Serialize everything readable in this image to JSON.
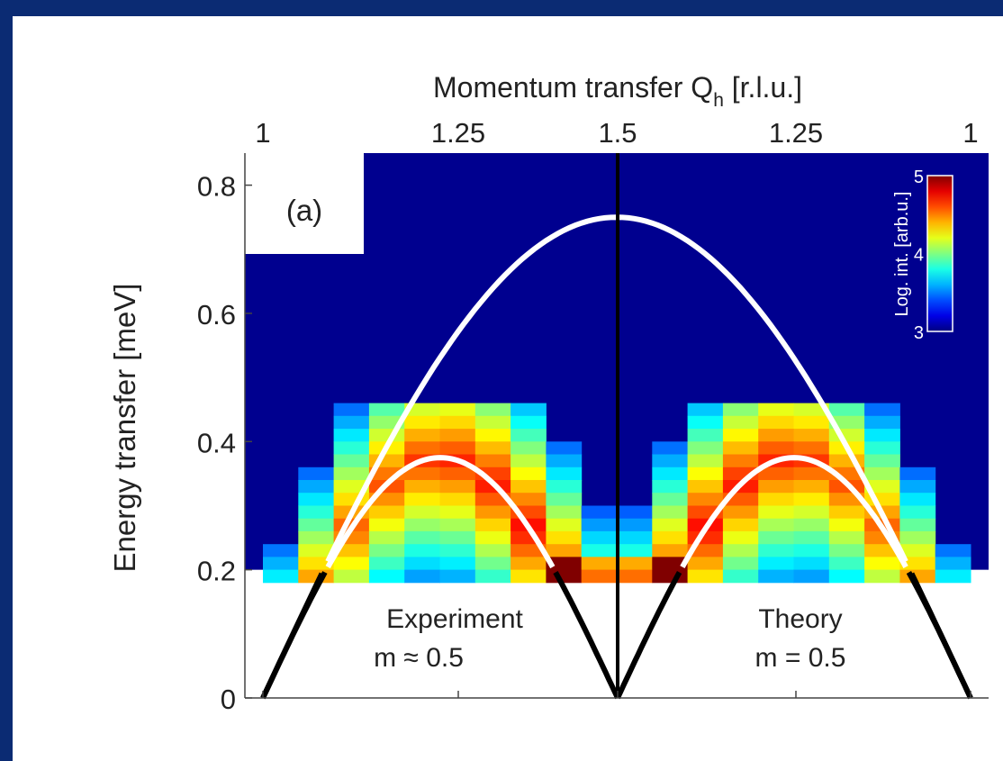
{
  "chart_data": {
    "type": "heatmap",
    "panel_label": "(a)",
    "xlabel": "Momentum transfer Q",
    "xlabel_sub": "h",
    "xlabel_units": " [r.l.u.]",
    "ylabel": "Energy transfer [meV]",
    "x_ticks": [
      "1",
      "1.25",
      "1.5",
      "1.25",
      "1"
    ],
    "y_ticks": [
      "0",
      "0.2",
      "0.4",
      "0.6",
      "0.8"
    ],
    "ylim": [
      0,
      0.85
    ],
    "colorbar": {
      "label": "Log. int. [arb.u.]",
      "ticks": [
        "3",
        "4",
        "5"
      ],
      "range": [
        3,
        5
      ],
      "colormap": "jet"
    },
    "annotations": [
      {
        "text": "Experiment",
        "side": "left"
      },
      {
        "text": "m ≈ 0.5",
        "side": "left"
      },
      {
        "text": "Theory",
        "side": "right"
      },
      {
        "text": "m = 0.5",
        "side": "right"
      }
    ],
    "dispersion_curves": [
      {
        "name": "upper",
        "peak_meV": 0.75
      },
      {
        "name": "lower",
        "peak_meV": 0.375
      }
    ],
    "heatmap_grid": {
      "y_bin_top_meV": [
        0.46,
        0.44,
        0.42,
        0.4,
        0.38,
        0.36,
        0.34,
        0.32,
        0.3,
        0.28,
        0.26,
        0.24,
        0.22,
        0.2
      ],
      "rows": [
        "",
        "",
        "",
        "",
        "",
        "",
        "",
        ""
      ]
    }
  },
  "colors": {
    "frame": "#0b2b73",
    "background": "#00008f",
    "curve_white": "#ffffff",
    "curve_black": "#000000"
  }
}
